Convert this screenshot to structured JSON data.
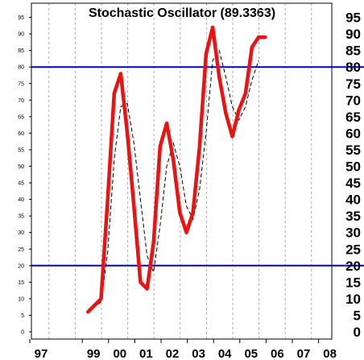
{
  "chart_data": {
    "type": "line",
    "title": "Stochastic Oscillator (89.3363)",
    "xlabel": "",
    "ylabel": "",
    "ylim": [
      0,
      95
    ],
    "y_ticks": [
      0,
      5,
      10,
      15,
      20,
      25,
      30,
      35,
      40,
      45,
      50,
      55,
      60,
      65,
      70,
      75,
      80,
      85,
      90,
      95
    ],
    "x_ticks": [
      "97",
      "99",
      "00",
      "01",
      "02",
      "03",
      "04",
      "05",
      "06",
      "07",
      "08"
    ],
    "x_range": [
      1996.5,
      2008.5
    ],
    "grid": "vertical-dashed",
    "reference_lines": [
      {
        "value": 20,
        "color": "#0000cc"
      },
      {
        "value": 80,
        "color": "#0000cc"
      }
    ],
    "series": [
      {
        "style": "solid",
        "color": "#ee1111",
        "x": [
          1999.0,
          1999.5,
          1999.75,
          2000.0,
          2000.25,
          2000.5,
          2000.75,
          2001.0,
          2001.25,
          2001.5,
          2001.75,
          2002.0,
          2002.25,
          2002.5,
          2002.75,
          2003.0,
          2003.25,
          2003.5,
          2003.75,
          2004.0,
          2004.25,
          2004.5,
          2004.75,
          2005.0,
          2005.25,
          2005.5,
          2005.75
        ],
        "y": [
          6,
          10,
          40,
          72,
          78,
          60,
          38,
          15,
          13,
          27,
          56,
          63,
          52,
          36,
          30,
          36,
          56,
          84,
          92,
          77,
          66,
          59,
          67,
          72,
          86,
          89,
          89
        ]
      },
      {
        "style": "dashed",
        "color": "#000000",
        "x": [
          1999.0,
          1999.5,
          1999.75,
          2000.0,
          2000.25,
          2000.5,
          2000.75,
          2001.0,
          2001.25,
          2001.5,
          2001.75,
          2002.0,
          2002.25,
          2002.5,
          2002.75,
          2003.0,
          2003.25,
          2003.5,
          2003.75,
          2004.0,
          2004.25,
          2004.5,
          2004.75,
          2005.0,
          2005.25,
          2005.5
        ],
        "y": [
          6,
          9,
          24,
          52,
          68,
          69,
          57,
          40,
          23,
          18,
          32,
          50,
          57,
          50,
          38,
          34,
          43,
          60,
          82,
          85,
          77,
          68,
          64,
          68,
          76,
          82
        ]
      }
    ]
  }
}
